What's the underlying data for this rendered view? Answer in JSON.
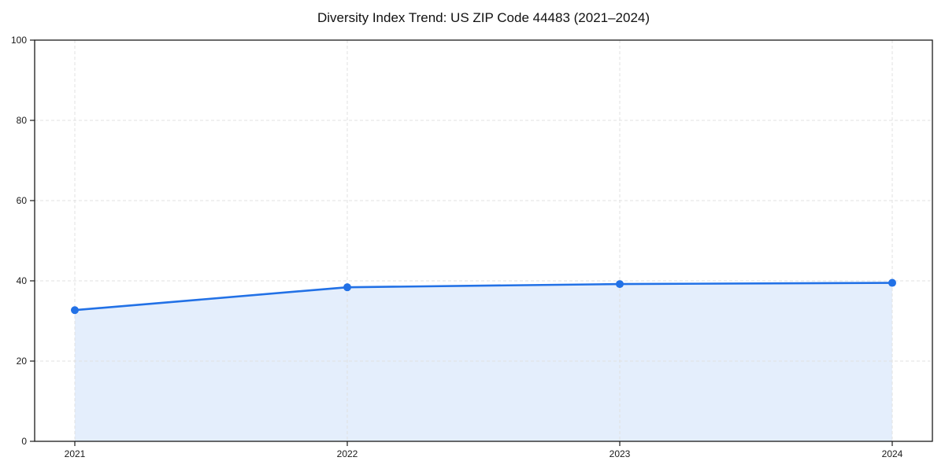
{
  "chart_data": {
    "type": "line",
    "title": "Diversity Index Trend: US ZIP Code 44483 (2021–2024)",
    "x": [
      "2021",
      "2022",
      "2023",
      "2024"
    ],
    "series": [
      {
        "name": "Diversity Index",
        "values": [
          32.7,
          38.4,
          39.2,
          39.5
        ]
      }
    ],
    "xticks": [
      "2021",
      "2022",
      "2023",
      "2024"
    ],
    "yticks": [
      0,
      20,
      40,
      60,
      80,
      100
    ],
    "ylim": [
      0,
      100
    ],
    "xlabel": "",
    "ylabel": "",
    "grid": true,
    "grid_style": "dashed",
    "legend": false,
    "marker": "circle",
    "colors": {
      "line": "#2271e6",
      "marker": "#2271e6",
      "fill": "#2271e6",
      "fill_opacity": 0.12,
      "grid": "#e0e0e0",
      "axis": "#1a1a1a",
      "text": "#1a1a1a",
      "background": "#ffffff"
    }
  }
}
